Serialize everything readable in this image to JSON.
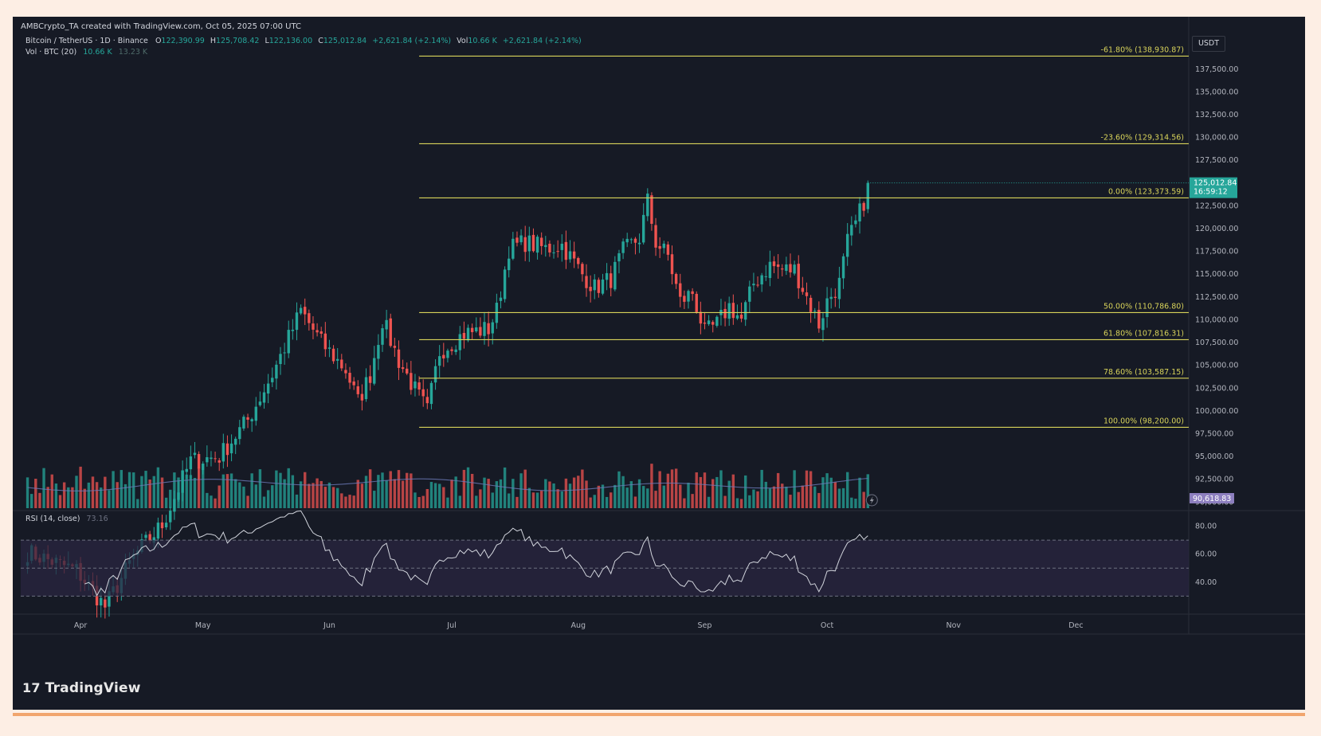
{
  "header": {
    "caption": "AMBCrypto_TA created with TradingView.com, Oct 05, 2025 07:00 UTC",
    "symbol": "Bitcoin / TetherUS · 1D · Binance",
    "ohlc": {
      "o_label": "O",
      "o": "122,390.99",
      "h_label": "H",
      "h": "125,708.42",
      "l_label": "L",
      "l": "122,136.00",
      "c_label": "C",
      "c": "125,012.84",
      "change": "+2,621.84 (+2.14%)"
    },
    "vol_inline": {
      "label": "Vol",
      "value": "10.66 K",
      "change": "+2,621.84 (+2.14%)"
    },
    "volume_legend": {
      "label": "Vol · BTC (20)",
      "v1": "10.66 K",
      "v2": "13.23 K"
    },
    "rsi_legend": {
      "label": "RSI (14, close)",
      "value": "73.16"
    },
    "currency": "USDT"
  },
  "colors": {
    "background": "#161a25",
    "bull": "#26a69a",
    "bear": "#ef5350",
    "fib_line": "#d8d35a",
    "rsi_line": "#d1d4dc",
    "rsi_band": "#2a2540",
    "price_tag": "#26a69a",
    "volume_tag": "#8d7fbf"
  },
  "chart_data": {
    "type": "candlestick",
    "symbol": "Bitcoin / TetherUS",
    "interval": "1D",
    "exchange": "Binance",
    "y_range": [
      89500,
      141500
    ],
    "price_ticks": [
      "137,500.00",
      "135,000.00",
      "132,500.00",
      "130,000.00",
      "127,500.00",
      "122,500.00",
      "120,000.00",
      "117,500.00",
      "115,000.00",
      "112,500.00",
      "110,000.00",
      "107,500.00",
      "105,000.00",
      "102,500.00",
      "100,000.00",
      "97,500.00",
      "95,000.00",
      "92,500.00",
      "90,000.00"
    ],
    "price_tick_values": [
      137500,
      135000,
      132500,
      130000,
      127500,
      122500,
      120000,
      117500,
      115000,
      112500,
      110000,
      107500,
      105000,
      102500,
      100000,
      97500,
      95000,
      92500,
      90000
    ],
    "last_price": {
      "value": 125012.84,
      "label": "125,012.84",
      "countdown": "16:59:12"
    },
    "volume_ma_tag": "90,618.83",
    "x_ticks": [
      {
        "label": "Apr",
        "day": 1
      },
      {
        "label": "May",
        "day": 31
      },
      {
        "label": "Jun",
        "day": 62
      },
      {
        "label": "Jul",
        "day": 92
      },
      {
        "label": "Aug",
        "day": 123
      },
      {
        "label": "Sep",
        "day": 154
      },
      {
        "label": "Oct",
        "day": 184
      },
      {
        "label": "Nov",
        "day": 215
      },
      {
        "label": "Dec",
        "day": 245
      }
    ],
    "fib_levels": [
      {
        "label": "-61.80% (138,930.87)",
        "price": 138930.87
      },
      {
        "label": "-23.60% (129,314.56)",
        "price": 129314.56
      },
      {
        "label": "0.00% (123,373.59)",
        "price": 123373.59
      },
      {
        "label": "50.00% (110,786.80)",
        "price": 110786.8
      },
      {
        "label": "61.80% (107,816.31)",
        "price": 107816.31
      },
      {
        "label": "78.60% (103,587.15)",
        "price": 103587.15
      },
      {
        "label": "100.00% (98,200.00)",
        "price": 98200.0
      }
    ],
    "fib_start_day": 84,
    "anchors": [
      {
        "day": -12,
        "price": 84500
      },
      {
        "day": 0,
        "price": 82500
      },
      {
        "day": 7,
        "price": 78500
      },
      {
        "day": 14,
        "price": 84000
      },
      {
        "day": 21,
        "price": 87500
      },
      {
        "day": 28,
        "price": 94500
      },
      {
        "day": 35,
        "price": 95000
      },
      {
        "day": 42,
        "price": 99000
      },
      {
        "day": 48,
        "price": 104000
      },
      {
        "day": 55,
        "price": 111000
      },
      {
        "day": 60,
        "price": 107500
      },
      {
        "day": 66,
        "price": 104500
      },
      {
        "day": 69,
        "price": 101000
      },
      {
        "day": 72,
        "price": 104000
      },
      {
        "day": 75,
        "price": 110000
      },
      {
        "day": 79,
        "price": 105500
      },
      {
        "day": 84,
        "price": 101500
      },
      {
        "day": 86,
        "price": 100000
      },
      {
        "day": 89,
        "price": 106500
      },
      {
        "day": 95,
        "price": 108500
      },
      {
        "day": 101,
        "price": 109000
      },
      {
        "day": 103,
        "price": 111000
      },
      {
        "day": 106,
        "price": 117800
      },
      {
        "day": 110,
        "price": 118500
      },
      {
        "day": 115,
        "price": 117800
      },
      {
        "day": 119,
        "price": 118200
      },
      {
        "day": 124,
        "price": 115000
      },
      {
        "day": 127,
        "price": 113500
      },
      {
        "day": 131,
        "price": 114500
      },
      {
        "day": 134,
        "price": 117500
      },
      {
        "day": 138,
        "price": 119000
      },
      {
        "day": 140,
        "price": 123000
      },
      {
        "day": 142,
        "price": 118500
      },
      {
        "day": 145,
        "price": 117000
      },
      {
        "day": 148,
        "price": 112000
      },
      {
        "day": 151,
        "price": 113000
      },
      {
        "day": 154,
        "price": 108500
      },
      {
        "day": 157,
        "price": 109500
      },
      {
        "day": 160,
        "price": 111500
      },
      {
        "day": 163,
        "price": 110000
      },
      {
        "day": 166,
        "price": 114000
      },
      {
        "day": 170,
        "price": 116000
      },
      {
        "day": 173,
        "price": 115500
      },
      {
        "day": 176,
        "price": 115500
      },
      {
        "day": 179,
        "price": 112500
      },
      {
        "day": 182,
        "price": 109500
      },
      {
        "day": 184,
        "price": 112000
      },
      {
        "day": 187,
        "price": 114000
      },
      {
        "day": 189,
        "price": 118500
      },
      {
        "day": 191,
        "price": 120500
      },
      {
        "day": 193,
        "price": 123000
      },
      {
        "day": 194,
        "price": 125012
      }
    ],
    "rsi_range": [
      20,
      90
    ],
    "rsi_ticks": [
      "80.00",
      "60.00",
      "40.00"
    ],
    "rsi_tick_values": [
      80,
      60,
      40
    ],
    "rsi_band": [
      30,
      70
    ],
    "rsi_mid": 50
  }
}
